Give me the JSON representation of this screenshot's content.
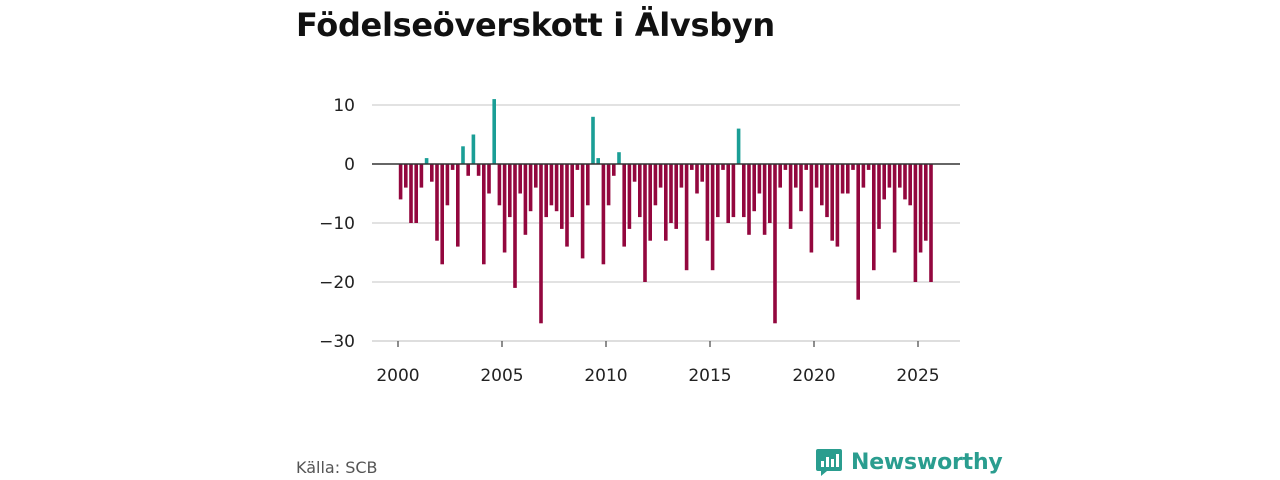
{
  "title": "Födelseöverskott i Älvsbyn",
  "source": "Källa: SCB",
  "brand": {
    "name": "Newsworthy",
    "logo_icon": "bar-chart-speech-icon"
  },
  "colors": {
    "positive": "#1a9e96",
    "negative": "#93073e",
    "grid": "#d9d9d9",
    "zero_line": "#333333",
    "brand": "#2a9d8f"
  },
  "chart_data": {
    "type": "bar",
    "title": "Födelseöverskott i Älvsbyn",
    "xlabel": "",
    "ylabel": "",
    "ylim": [
      -30,
      12
    ],
    "xlim": [
      1999.75,
      2026.75
    ],
    "grid": true,
    "y_ticks": [
      10,
      0,
      -10,
      -20,
      -30
    ],
    "y_tick_labels": [
      "10",
      "0",
      "−10",
      "−20",
      "−30"
    ],
    "x_ticks": [
      2000,
      2005,
      2010,
      2015,
      2020,
      2025
    ],
    "x_tick_labels": [
      "2000",
      "2005",
      "2010",
      "2015",
      "2020",
      "2025"
    ],
    "period": "quarterly",
    "series": [
      {
        "name": "Födelseöverskott",
        "start": 2000,
        "step": 0.25,
        "values": [
          -6,
          -4,
          -10,
          -10,
          -4,
          1,
          -3,
          -13,
          -17,
          -7,
          -1,
          -14,
          3,
          -2,
          5,
          -2,
          -17,
          -5,
          11,
          -7,
          -15,
          -9,
          -21,
          -5,
          -12,
          -8,
          -4,
          -27,
          -9,
          -7,
          -8,
          -11,
          -14,
          -9,
          -1,
          -16,
          -7,
          8,
          1,
          -17,
          -7,
          -2,
          2,
          -14,
          -11,
          -3,
          -9,
          -20,
          -13,
          -7,
          -4,
          -13,
          -10,
          -11,
          -4,
          -18,
          -1,
          -5,
          -3,
          -13,
          -18,
          -9,
          -1,
          -10,
          -9,
          6,
          -9,
          -12,
          -8,
          -5,
          -12,
          -10,
          -27,
          -4,
          -1,
          -11,
          -4,
          -8,
          -1,
          -15,
          -4,
          -7,
          -9,
          -13,
          -14,
          -5,
          -5,
          -1,
          -23,
          -4,
          -1,
          -18,
          -11,
          -6,
          -4,
          -15,
          -4,
          -6,
          -7,
          -20,
          -15,
          -13,
          -20
        ]
      }
    ]
  }
}
